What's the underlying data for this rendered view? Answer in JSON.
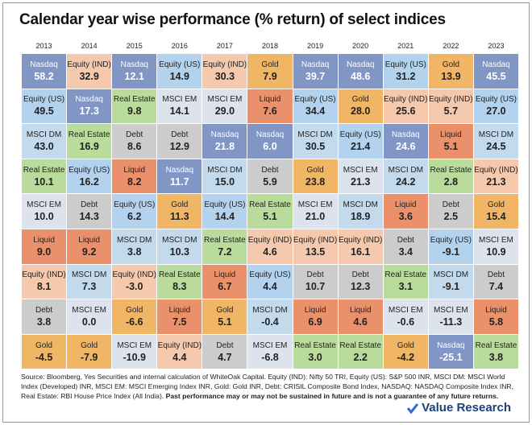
{
  "title": "Calendar year wise performance (% return) of select indices",
  "years": [
    "2013",
    "2014",
    "2015",
    "2016",
    "2017",
    "2018",
    "2019",
    "2020",
    "2021",
    "2022",
    "2023"
  ],
  "colors": {
    "Nasdaq": "#8196c4",
    "Equity (IND)": "#f5c9ae",
    "Equity (US)": "#b3d2ee",
    "Real Estate": "#b9db9c",
    "MSCI DM": "#c3d9ec",
    "MSCI EM": "#dde3ec",
    "Debt": "#cccccc",
    "Gold": "#f0b666",
    "Liquid": "#ea916b"
  },
  "light_text": [
    "Nasdaq"
  ],
  "columns": [
    [
      [
        "Nasdaq",
        "58.2"
      ],
      [
        "Equity (US)",
        "49.5"
      ],
      [
        "MSCI DM",
        "43.0"
      ],
      [
        "Real Estate",
        "10.1"
      ],
      [
        "MSCI EM",
        "10.0"
      ],
      [
        "Liquid",
        "9.0"
      ],
      [
        "Equity (IND)",
        "8.1"
      ],
      [
        "Debt",
        "3.8"
      ],
      [
        "Gold",
        "-4.5"
      ]
    ],
    [
      [
        "Equity (IND)",
        "32.9"
      ],
      [
        "Nasdaq",
        "17.3"
      ],
      [
        "Real Estate",
        "16.9"
      ],
      [
        "Equity (US)",
        "16.2"
      ],
      [
        "Debt",
        "14.3"
      ],
      [
        "Liquid",
        "9.2"
      ],
      [
        "MSCI DM",
        "7.3"
      ],
      [
        "MSCI EM",
        "0.0"
      ],
      [
        "Gold",
        "-7.9"
      ]
    ],
    [
      [
        "Nasdaq",
        "12.1"
      ],
      [
        "Real Estate",
        "9.8"
      ],
      [
        "Debt",
        "8.6"
      ],
      [
        "Liquid",
        "8.2"
      ],
      [
        "Equity (US)",
        "6.2"
      ],
      [
        "MSCI DM",
        "3.8"
      ],
      [
        "Equity (IND)",
        "-3.0"
      ],
      [
        "Gold",
        "-6.6"
      ],
      [
        "MSCI EM",
        "-10.9"
      ]
    ],
    [
      [
        "Equity (US)",
        "14.9"
      ],
      [
        "MSCI EM",
        "14.1"
      ],
      [
        "Debt",
        "12.9"
      ],
      [
        "Nasdaq",
        "11.7"
      ],
      [
        "Gold",
        "11.3"
      ],
      [
        "MSCI DM",
        "10.3"
      ],
      [
        "Real Estate",
        "8.3"
      ],
      [
        "Liquid",
        "7.5"
      ],
      [
        "Equity (IND)",
        "4.4"
      ]
    ],
    [
      [
        "Equity (IND)",
        "30.3"
      ],
      [
        "MSCI EM",
        "29.0"
      ],
      [
        "Nasdaq",
        "21.8"
      ],
      [
        "MSCI DM",
        "15.0"
      ],
      [
        "Equity (US)",
        "14.4"
      ],
      [
        "Real Estate",
        "7.2"
      ],
      [
        "Liquid",
        "6.7"
      ],
      [
        "Gold",
        "5.1"
      ],
      [
        "Debt",
        "4.7"
      ]
    ],
    [
      [
        "Gold",
        "7.9"
      ],
      [
        "Liquid",
        "7.6"
      ],
      [
        "Nasdaq",
        "6.0"
      ],
      [
        "Debt",
        "5.9"
      ],
      [
        "Real Estate",
        "5.1"
      ],
      [
        "Equity (IND)",
        "4.6"
      ],
      [
        "Equity (US)",
        "4.4"
      ],
      [
        "MSCI DM",
        "-0.4"
      ],
      [
        "MSCI EM",
        "-6.8"
      ]
    ],
    [
      [
        "Nasdaq",
        "39.7"
      ],
      [
        "Equity (US)",
        "34.4"
      ],
      [
        "MSCI DM",
        "30.5"
      ],
      [
        "Gold",
        "23.8"
      ],
      [
        "MSCI EM",
        "21.0"
      ],
      [
        "Equity (IND)",
        "13.5"
      ],
      [
        "Debt",
        "10.7"
      ],
      [
        "Liquid",
        "6.9"
      ],
      [
        "Real Estate",
        "3.0"
      ]
    ],
    [
      [
        "Nasdaq",
        "48.6"
      ],
      [
        "Gold",
        "28.0"
      ],
      [
        "Equity (US)",
        "21.4"
      ],
      [
        "MSCI EM",
        "21.3"
      ],
      [
        "MSCI DM",
        "18.9"
      ],
      [
        "Equity (IND)",
        "16.1"
      ],
      [
        "Debt",
        "12.3"
      ],
      [
        "Liquid",
        "4.6"
      ],
      [
        "Real Estate",
        "2.2"
      ]
    ],
    [
      [
        "Equity (US)",
        "31.2"
      ],
      [
        "Equity (IND)",
        "25.6"
      ],
      [
        "Nasdaq",
        "24.6"
      ],
      [
        "MSCI DM",
        "24.2"
      ],
      [
        "Liquid",
        "3.6"
      ],
      [
        "Debt",
        "3.4"
      ],
      [
        "Real Estate",
        "3.1"
      ],
      [
        "MSCI EM",
        "-0.6"
      ],
      [
        "Gold",
        "-4.2"
      ]
    ],
    [
      [
        "Gold",
        "13.9"
      ],
      [
        "Equity (IND)",
        "5.7"
      ],
      [
        "Liquid",
        "5.1"
      ],
      [
        "Real Estate",
        "2.8"
      ],
      [
        "Debt",
        "2.5"
      ],
      [
        "Equity (US)",
        "-9.1"
      ],
      [
        "MSCI DM",
        "-9.1"
      ],
      [
        "MSCI EM",
        "-11.3"
      ],
      [
        "Nasdaq",
        "-25.1"
      ]
    ],
    [
      [
        "Nasdaq",
        "45.5"
      ],
      [
        "Equity (US)",
        "27.0"
      ],
      [
        "MSCI DM",
        "24.5"
      ],
      [
        "Equity (IND)",
        "21.3"
      ],
      [
        "Gold",
        "15.4"
      ],
      [
        "MSCI EM",
        "10.9"
      ],
      [
        "Debt",
        "7.4"
      ],
      [
        "Liquid",
        "5.8"
      ],
      [
        "Real Estate",
        "3.8"
      ]
    ]
  ],
  "source": "Source: Bloomberg, Yes Securities and internal calculation of WhiteOak Capital. Equity (IND): Nifty 50 TRI, Equity (US): S&P 500 INR, MSCI DM: MSCI World Index (Developed) INR, MSCI EM: MSCI Emerging Index INR, Gold: Gold INR, Debt: CRISIL Composite Bond Index, NASDAQ: NASDAQ Composite Index INR, Real Estate: RBI House Price Index (All India).",
  "disclaimer": "Past performance may or may not be sustained in future and is not a guarantee of any future returns.",
  "brand": "Value Research"
}
